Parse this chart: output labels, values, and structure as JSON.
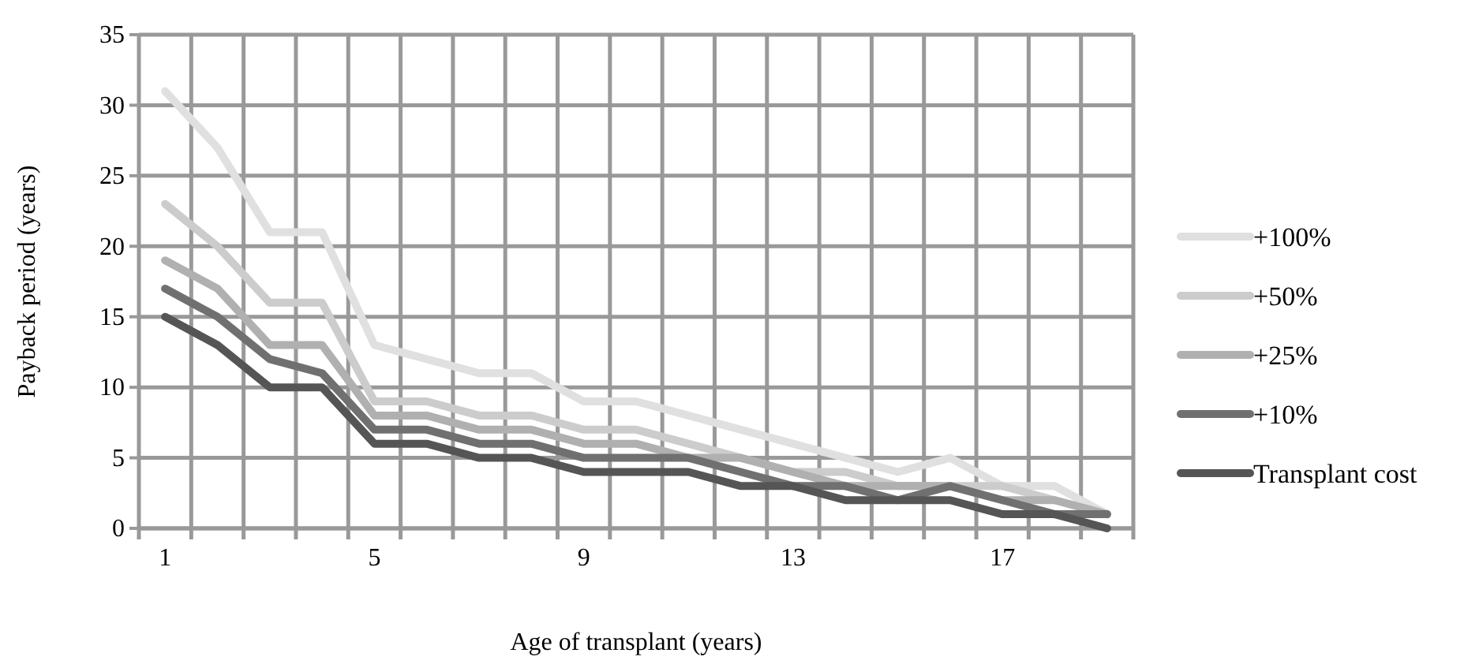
{
  "chart_data": {
    "type": "line",
    "xlabel": "Age of transplant (years)",
    "ylabel": "Payback period (years)",
    "categories": [
      "1",
      null,
      null,
      null,
      "5",
      null,
      null,
      null,
      "9",
      null,
      null,
      null,
      "13",
      null,
      null,
      null,
      "17",
      null,
      null
    ],
    "series": [
      {
        "name": "+100%",
        "color": "#e0e0e0",
        "values": [
          31,
          27,
          21,
          21,
          13,
          12,
          11,
          11,
          9,
          9,
          8,
          7,
          6,
          5,
          4,
          5,
          3,
          3,
          1
        ]
      },
      {
        "name": "+50%",
        "color": "#cccccc",
        "values": [
          23,
          20,
          16,
          16,
          9,
          9,
          8,
          8,
          7,
          7,
          6,
          5,
          4,
          4,
          3,
          3,
          3,
          2,
          1
        ]
      },
      {
        "name": "+25%",
        "color": "#b0b0b0",
        "values": [
          19,
          17,
          13,
          13,
          8,
          8,
          7,
          7,
          6,
          6,
          5,
          5,
          4,
          3,
          3,
          3,
          2,
          2,
          1
        ]
      },
      {
        "name": "+10%",
        "color": "#707070",
        "values": [
          17,
          15,
          12,
          11,
          7,
          7,
          6,
          6,
          5,
          5,
          5,
          4,
          3,
          3,
          2,
          3,
          2,
          1,
          1
        ]
      },
      {
        "name": "Transplant cost",
        "color": "#555555",
        "values": [
          15,
          13,
          10,
          10,
          6,
          6,
          5,
          5,
          4,
          4,
          4,
          3,
          3,
          2,
          2,
          2,
          1,
          1,
          0
        ]
      }
    ],
    "ylim": [
      0,
      35
    ],
    "yticks": [
      0,
      5,
      10,
      15,
      20,
      25,
      30,
      35
    ],
    "grid": true,
    "legend": "right",
    "marker": "none",
    "line_style": "solid"
  }
}
